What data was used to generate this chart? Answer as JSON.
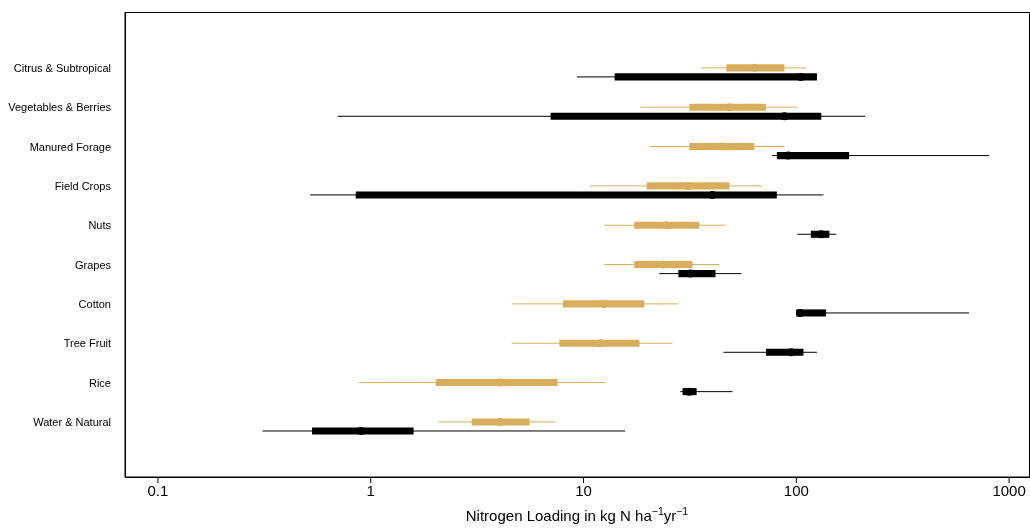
{
  "chart_data": {
    "type": "box",
    "orientation": "horizontal",
    "xlabel": "Nitrogen Loading in kg N ha$^{−1}$yr$^{−1}$",
    "log": "x",
    "xlim": [
      0.07,
      1240
    ],
    "xticks": [
      0.1,
      1,
      10,
      100,
      1000
    ],
    "categories": [
      "Citrus & Subtropical",
      "Vegetables & Berries",
      "Manured Forage",
      "Field Crops",
      "Nuts",
      "Grapes",
      "Cotton",
      "Tree Fruit",
      "Rice",
      "Water & Natural"
    ],
    "marker": "circle",
    "series": [
      {
        "color": "#d8ae5e",
        "boxes": [
          {
            "low": 35.8,
            "q1": 46.9,
            "median": 63.5,
            "q3": 87.9,
            "high": 111
          },
          {
            "low": 18.5,
            "q1": 31.4,
            "median": 48.5,
            "q3": 72,
            "high": 101
          },
          {
            "low": 20.4,
            "q1": 31.4,
            "median": 45,
            "q3": 63.5,
            "high": 87.9
          },
          {
            "low": 10.7,
            "q1": 19.8,
            "median": 31.1,
            "q3": 48.5,
            "high": 69
          },
          {
            "low": 12.5,
            "q1": 17.3,
            "median": 24.5,
            "q3": 35,
            "high": 46.4
          },
          {
            "low": 12.5,
            "q1": 17.3,
            "median": 23.7,
            "q3": 32.5,
            "high": 43.5
          },
          {
            "low": 4.6,
            "q1": 8,
            "median": 12.5,
            "q3": 19.3,
            "high": 27.9
          },
          {
            "low": 4.6,
            "q1": 7.7,
            "median": 12,
            "q3": 18.3,
            "high": 26.2
          },
          {
            "low": 0.88,
            "q1": 2.02,
            "median": 4.08,
            "q3": 7.55,
            "high": 12.7
          },
          {
            "low": 2.08,
            "q1": 2.98,
            "median": 4.03,
            "q3": 5.58,
            "high": 7.39
          }
        ]
      },
      {
        "color": "#000000",
        "boxes": [
          {
            "low": 9.3,
            "q1": 14,
            "median": 105,
            "q3": 125,
            "high": 125
          },
          {
            "low": 0.7,
            "q1": 7,
            "median": 87.9,
            "q3": 131,
            "high": 211
          },
          {
            "low": 77,
            "q1": 81,
            "median": 91.7,
            "q3": 177,
            "high": 806
          },
          {
            "low": 0.52,
            "q1": 0.85,
            "median": 40.3,
            "q3": 81,
            "high": 134
          },
          {
            "low": 101,
            "q1": 117,
            "median": 131,
            "q3": 143,
            "high": 154
          },
          {
            "low": 22.7,
            "q1": 27.9,
            "median": 31.8,
            "q3": 41.7,
            "high": 55.2
          },
          {
            "low": 100,
            "q1": 100,
            "median": 104,
            "q3": 138,
            "high": 649
          },
          {
            "low": 45.4,
            "q1": 72,
            "median": 94.8,
            "q3": 108,
            "high": 125
          },
          {
            "low": 28.5,
            "q1": 29.2,
            "median": 31.4,
            "q3": 34,
            "high": 50.1
          },
          {
            "low": 0.31,
            "q1": 0.53,
            "median": 0.9,
            "q3": 1.59,
            "high": 15.7
          }
        ]
      }
    ]
  }
}
